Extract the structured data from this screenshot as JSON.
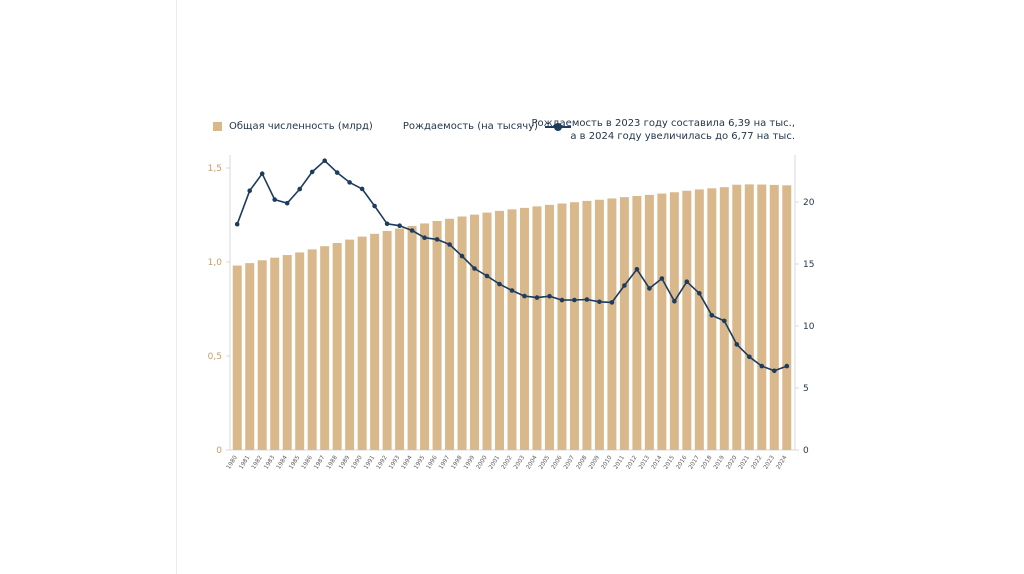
{
  "legend": {
    "population_label": "Общая численность (млрд)",
    "birthrate_label": "Рождаемость (на тысячу)"
  },
  "annotation": {
    "line1": "Рождаемость в 2023 году составила 6,39 на тыс.,",
    "line2": "а в 2024 году увеличилась до 6,77 на тыс."
  },
  "colors": {
    "bar": "#d9b88c",
    "line": "#1d3c5e",
    "left_axis_text": "#c49c66",
    "right_axis_text": "#25364a",
    "year_text": "#5a5a5a",
    "axis_line": "#d8d8d8"
  },
  "chart_data": {
    "type": "bar",
    "subtype": "bar+line dual axis",
    "years": [
      1980,
      1981,
      1982,
      1983,
      1984,
      1985,
      1986,
      1987,
      1988,
      1989,
      1990,
      1991,
      1992,
      1993,
      1994,
      1995,
      1996,
      1997,
      1998,
      1999,
      2000,
      2001,
      2002,
      2003,
      2004,
      2005,
      2006,
      2007,
      2008,
      2009,
      2010,
      2011,
      2012,
      2013,
      2014,
      2015,
      2016,
      2017,
      2018,
      2019,
      2020,
      2021,
      2022,
      2023,
      2024
    ],
    "series": [
      {
        "name": "Общая численность (млрд)",
        "type": "bar",
        "axis": "left",
        "values": [
          0.981,
          0.994,
          1.009,
          1.023,
          1.037,
          1.051,
          1.067,
          1.084,
          1.101,
          1.119,
          1.135,
          1.15,
          1.165,
          1.178,
          1.192,
          1.205,
          1.218,
          1.23,
          1.242,
          1.252,
          1.263,
          1.272,
          1.28,
          1.288,
          1.296,
          1.304,
          1.311,
          1.318,
          1.325,
          1.331,
          1.338,
          1.345,
          1.351,
          1.357,
          1.364,
          1.371,
          1.379,
          1.386,
          1.392,
          1.398,
          1.411,
          1.413,
          1.412,
          1.41,
          1.408
        ]
      },
      {
        "name": "Рождаемость (на тысячу)",
        "type": "line",
        "axis": "right",
        "values": [
          18.21,
          20.91,
          22.28,
          20.19,
          19.9,
          21.04,
          22.43,
          23.33,
          22.37,
          21.58,
          21.06,
          19.68,
          18.24,
          18.09,
          17.7,
          17.12,
          16.98,
          16.57,
          15.64,
          14.64,
          14.03,
          13.38,
          12.86,
          12.41,
          12.29,
          12.4,
          12.09,
          12.1,
          12.14,
          11.95,
          11.9,
          13.27,
          14.57,
          13.03,
          13.83,
          11.99,
          13.57,
          12.64,
          10.86,
          10.41,
          8.52,
          7.52,
          6.77,
          6.39,
          6.77
        ]
      }
    ],
    "left_axis": {
      "ticks": [
        0,
        0.5,
        1.0,
        1.5
      ],
      "tick_labels": [
        "0",
        "0,5",
        "1,0",
        "1,5"
      ],
      "range": [
        0,
        1.5
      ]
    },
    "right_axis": {
      "ticks": [
        0,
        5,
        10,
        15,
        20
      ],
      "tick_labels": [
        "0",
        "5",
        "10",
        "15",
        "20"
      ],
      "range": [
        0,
        23.8
      ]
    },
    "legend_position": "top-left",
    "grid": false
  }
}
